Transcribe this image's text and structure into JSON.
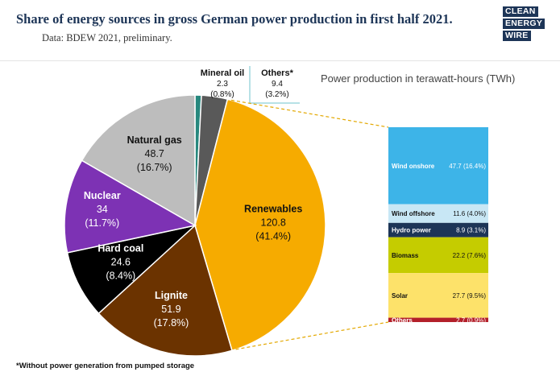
{
  "title": "Share of energy sources in gross German power production in first half 2021.",
  "subtitle": "Data: BDEW 2021, preliminary.",
  "logo": [
    "CLEAN",
    "ENERGY",
    "WIRE"
  ],
  "unit_label": "Power production in terawatt-hours (TWh)",
  "footnote": "*Without power generation from pumped storage",
  "colors": {
    "header_text": "#1d3557",
    "renewables": "#f6ab00",
    "lignite": "#6b3300",
    "hard_coal": "#000000",
    "nuclear": "#7d32b4",
    "natural_gas": "#bdbdbd",
    "mineral_oil": "#27887e",
    "others": "#595959"
  },
  "chart_data": [
    {
      "type": "pie",
      "start": "top, clockwise",
      "slices": [
        {
          "name": "Mineral oil",
          "value": 2.3,
          "percent": "(0.8%)",
          "color": "#27887e",
          "label_color": "#111111"
        },
        {
          "name": "Others*",
          "value": 9.4,
          "percent": "(3.2%)",
          "color": "#595959",
          "label_color": "#111111"
        },
        {
          "name": "Renewables",
          "value": 120.8,
          "percent": "(41.4%)",
          "color": "#f6ab00",
          "label_color": "#111111"
        },
        {
          "name": "Lignite",
          "value": 51.9,
          "percent": "(17.8%)",
          "color": "#6b3300",
          "label_color": "#ffffff"
        },
        {
          "name": "Hard coal",
          "value": 24.6,
          "percent": "(8.4%)",
          "color": "#000000",
          "label_color": "#ffffff"
        },
        {
          "name": "Nuclear",
          "value": 34.0,
          "percent": "(11.7%)",
          "color": "#7d32b4",
          "label_color": "#ffffff"
        },
        {
          "name": "Natural gas",
          "value": 48.7,
          "percent": "(16.7%)",
          "color": "#bdbdbd",
          "label_color": "#111111"
        }
      ]
    },
    {
      "type": "bar",
      "orientation": "stacked",
      "breakdown_of": "Renewables",
      "segments": [
        {
          "name": "Wind onshore",
          "value": 47.7,
          "percent": "(16.4%)",
          "color": "#3db4e8",
          "label_color": "#ffffff"
        },
        {
          "name": "Wind offshore",
          "value": 11.6,
          "percent": "(4.0%)",
          "color": "#c8e7f5",
          "label_color": "#111111"
        },
        {
          "name": "Hydro power",
          "value": 8.9,
          "percent": "(3.1%)",
          "color": "#1d3557",
          "label_color": "#ffffff"
        },
        {
          "name": "Biomass",
          "value": 22.2,
          "percent": "(7.6%)",
          "color": "#c5cc00",
          "label_color": "#111111"
        },
        {
          "name": "Solar",
          "value": 27.7,
          "percent": "(9.5%)",
          "color": "#fde26a",
          "label_color": "#111111"
        },
        {
          "name": "Others",
          "value": 2.7,
          "percent": "(0.9%)",
          "color": "#b3202a",
          "label_color": "#ffffff"
        }
      ]
    }
  ]
}
